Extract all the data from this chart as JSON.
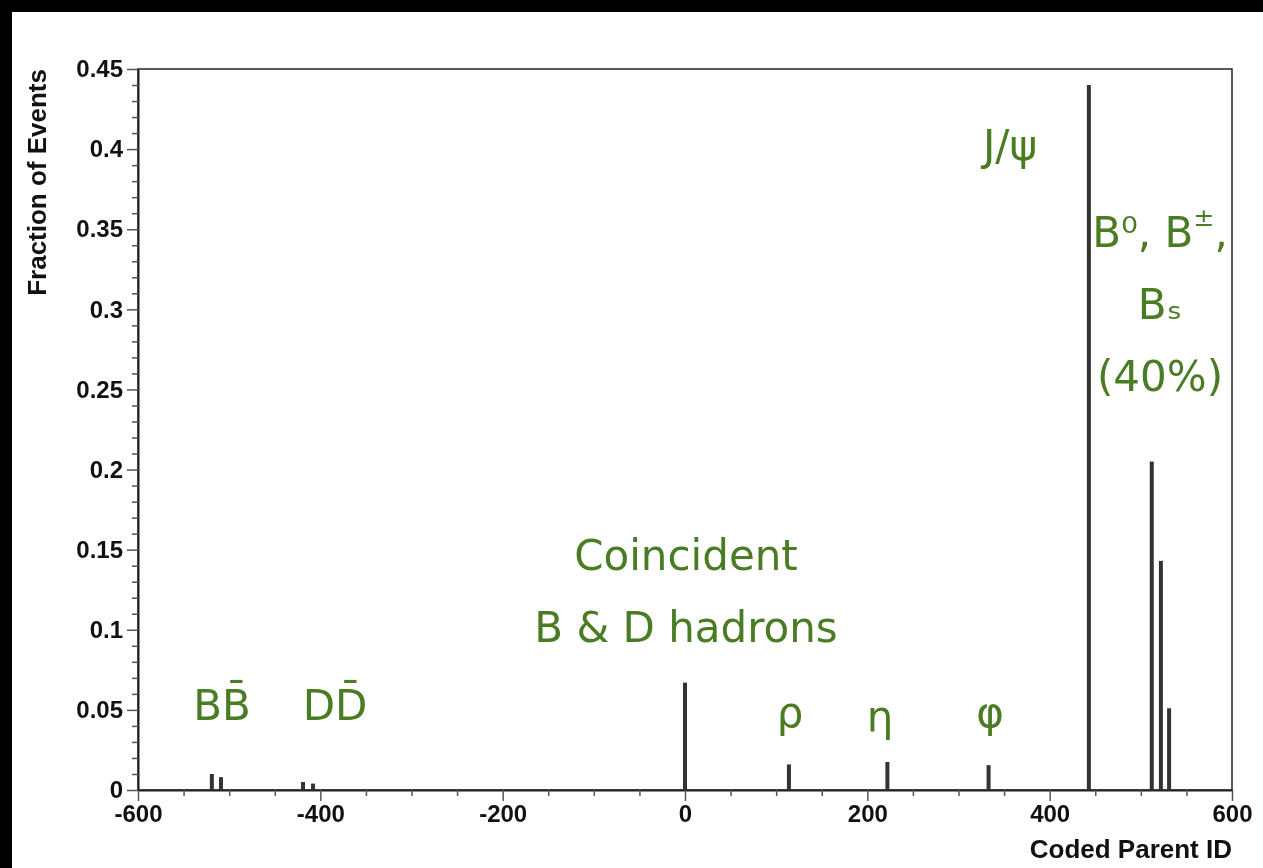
{
  "chart_data": {
    "type": "bar",
    "xlabel": "Coded Parent ID",
    "ylabel": "Fraction of Events",
    "x": [
      -519,
      -509,
      -419,
      -408,
      0,
      114,
      222,
      333,
      443,
      512,
      522,
      531
    ],
    "values": [
      0.01,
      0.008,
      0.005,
      0.004,
      0.067,
      0.016,
      0.0175,
      0.0155,
      0.44,
      0.205,
      0.143,
      0.051
    ],
    "color": "#333333",
    "xlim": [
      -600,
      600
    ],
    "xticks": [
      -600,
      {
        "value": -550,
        "label": null
      },
      {
        "value": -500,
        "label": null
      },
      {
        "value": -450,
        "label": null
      },
      -400,
      {
        "value": -350,
        "label": null
      },
      {
        "value": -300,
        "label": null
      },
      {
        "value": -250,
        "label": null
      },
      -200,
      {
        "value": -150,
        "label": null
      },
      {
        "value": -100,
        "label": null
      },
      {
        "value": -50,
        "label": null
      },
      0,
      {
        "value": 50,
        "label": null
      },
      {
        "value": 100,
        "label": null
      },
      {
        "value": 150,
        "label": null
      },
      200,
      {
        "value": 250,
        "label": null
      },
      {
        "value": 300,
        "label": null
      },
      {
        "value": 350,
        "label": null
      },
      400,
      {
        "value": 450,
        "label": null
      },
      {
        "value": 500,
        "label": null
      },
      {
        "value": 550,
        "label": null
      },
      600
    ],
    "ylim": [
      0,
      0.45
    ],
    "yticks": [
      0,
      {
        "value": 0.01,
        "label": null
      },
      {
        "value": 0.02,
        "label": null
      },
      {
        "value": 0.03,
        "label": null
      },
      {
        "value": 0.04,
        "label": null
      },
      0.05,
      {
        "value": 0.06,
        "label": null
      },
      {
        "value": 0.07,
        "label": null
      },
      {
        "value": 0.08,
        "label": null
      },
      {
        "value": 0.09,
        "label": null
      },
      0.1,
      {
        "value": 0.11,
        "label": null
      },
      {
        "value": 0.12,
        "label": null
      },
      {
        "value": 0.13,
        "label": null
      },
      {
        "value": 0.14,
        "label": null
      },
      0.15,
      {
        "value": 0.16,
        "label": null
      },
      {
        "value": 0.17,
        "label": null
      },
      {
        "value": 0.18,
        "label": null
      },
      {
        "value": 0.19,
        "label": null
      },
      0.2,
      {
        "value": 0.21,
        "label": null
      },
      {
        "value": 0.22,
        "label": null
      },
      {
        "value": 0.23,
        "label": null
      },
      {
        "value": 0.24,
        "label": null
      },
      0.25,
      {
        "value": 0.26,
        "label": null
      },
      {
        "value": 0.27,
        "label": null
      },
      {
        "value": 0.28,
        "label": null
      },
      {
        "value": 0.29,
        "label": null
      },
      0.3,
      {
        "value": 0.31,
        "label": null
      },
      {
        "value": 0.32,
        "label": null
      },
      {
        "value": 0.33,
        "label": null
      },
      {
        "value": 0.34,
        "label": null
      },
      0.35,
      {
        "value": 0.36,
        "label": null
      },
      {
        "value": 0.37,
        "label": null
      },
      {
        "value": 0.38,
        "label": null
      },
      {
        "value": 0.39,
        "label": null
      },
      0.4,
      {
        "value": 0.41,
        "label": null
      },
      {
        "value": 0.42,
        "label": null
      },
      {
        "value": 0.43,
        "label": null
      },
      {
        "value": 0.44,
        "label": null
      },
      0.45
    ],
    "grid": false,
    "annotations": [
      "J/ψ",
      "B⁰, B$^{±}$,\nBₛ\n(40%)",
      "Coincident\nB & D hadrons",
      "BB̄",
      "DD̄",
      "ρ",
      "η",
      "φ"
    ]
  }
}
